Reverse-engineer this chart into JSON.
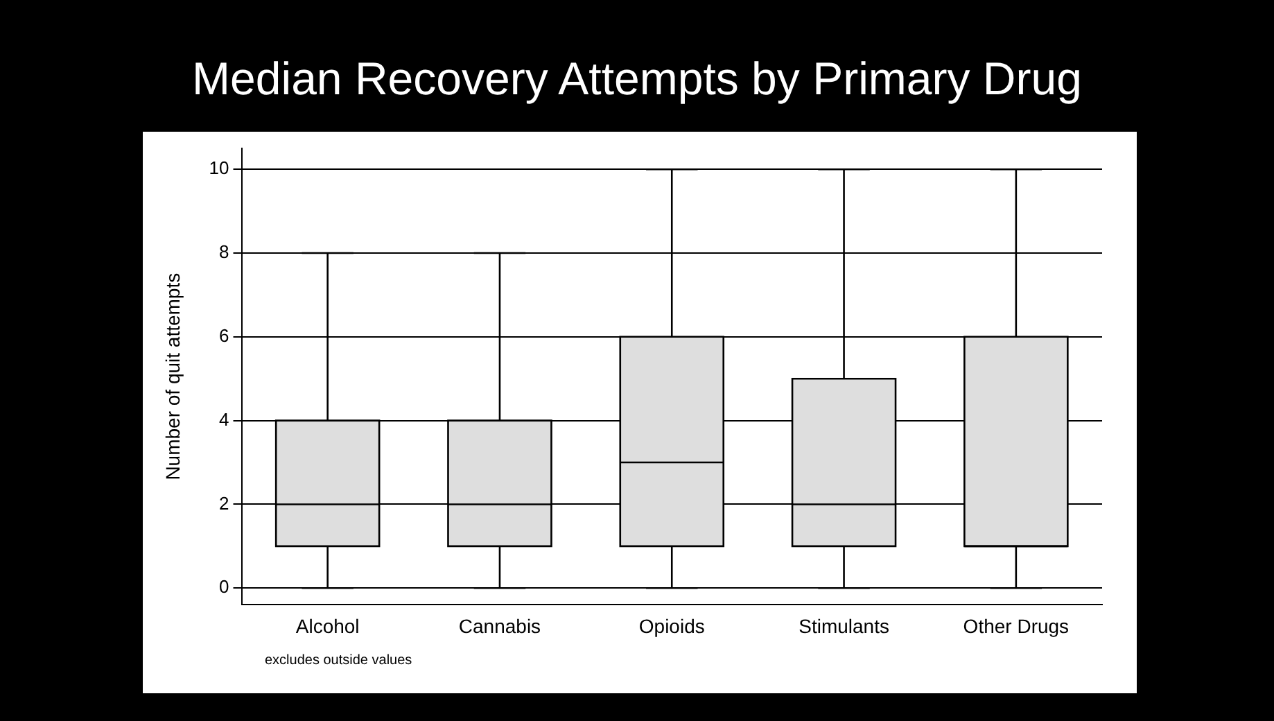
{
  "chart_data": {
    "type": "box",
    "title": "Median Recovery Attempts by Primary Drug",
    "ylabel": "Number of quit attempts",
    "categories": [
      "Alcohol",
      "Cannabis",
      "Opioids",
      "Stimulants",
      "Other Drugs"
    ],
    "boxes": [
      {
        "low": 0,
        "q1": 1,
        "median": 2,
        "q3": 4,
        "high": 8
      },
      {
        "low": 0,
        "q1": 1,
        "median": 2,
        "q3": 4,
        "high": 8
      },
      {
        "low": 0,
        "q1": 1,
        "median": 3,
        "q3": 6,
        "high": 10
      },
      {
        "low": 0,
        "q1": 1,
        "median": 2,
        "q3": 5,
        "high": 10
      },
      {
        "low": 0,
        "q1": 1,
        "median": 1,
        "q3": 6,
        "high": 10
      }
    ],
    "color": "#dedede",
    "ylim": [
      -0.4,
      10.5
    ],
    "yticks": [
      0,
      2,
      4,
      6,
      8,
      10
    ],
    "grid": "y",
    "annotations": [
      "excludes outside values"
    ]
  }
}
